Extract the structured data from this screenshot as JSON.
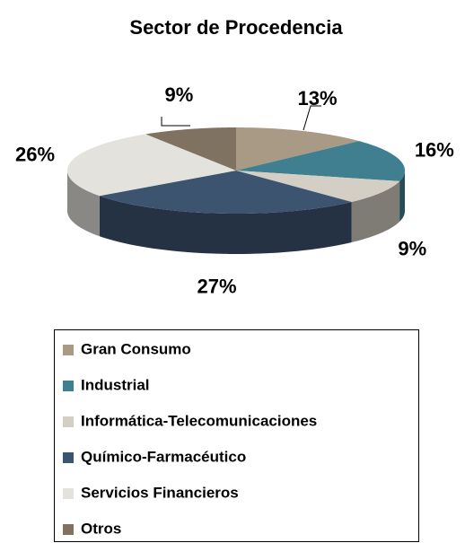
{
  "chart_data": {
    "type": "pie3d",
    "title": "Sector de Procedencia",
    "categories": [
      "Gran Consumo",
      "Industrial",
      "Informática-Telecomunicaciones",
      "Químico-Farmacéutico",
      "Servicios Financieros",
      "Otros"
    ],
    "values": [
      13,
      16,
      9,
      27,
      26,
      9
    ],
    "value_labels": [
      "13%",
      "16%",
      "9%",
      "27%",
      "26%",
      "9%"
    ],
    "colors": [
      "#a89a84",
      "#3f7f8f",
      "#d4cfc4",
      "#3c5470",
      "#e4e2dc",
      "#7f7260"
    ]
  }
}
